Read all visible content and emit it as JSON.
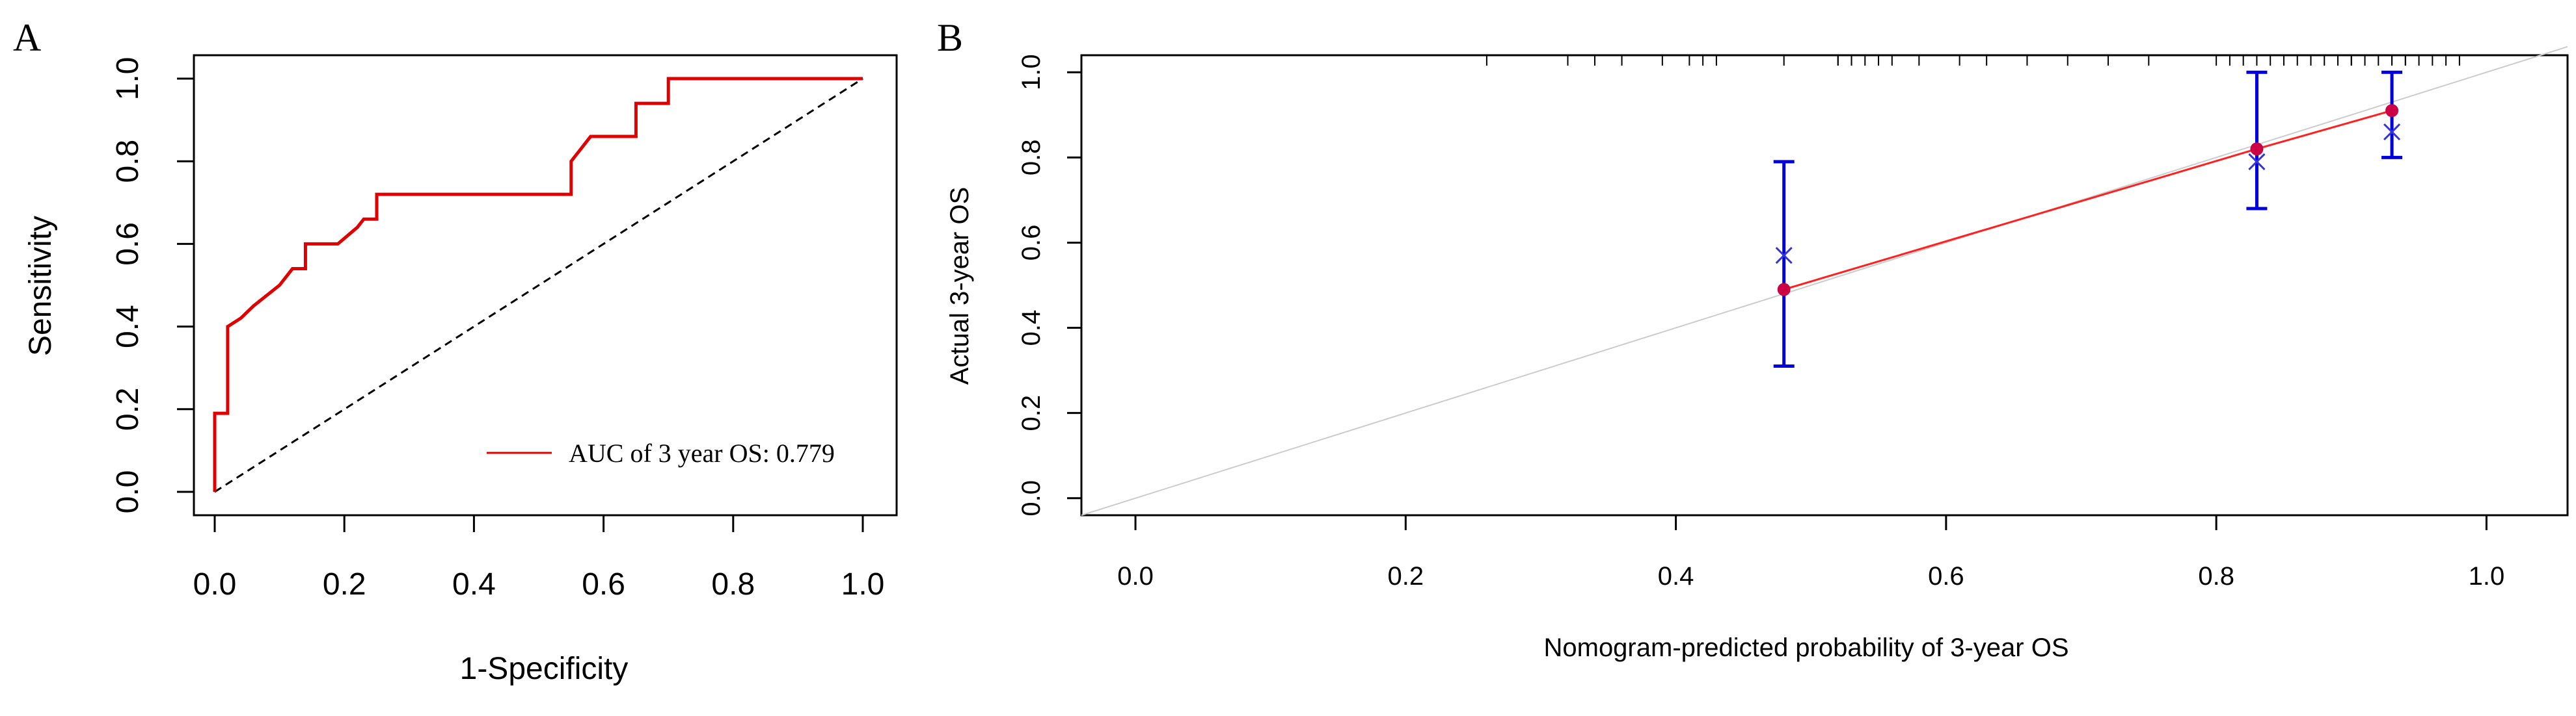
{
  "figure": {
    "panel_a_label": "A",
    "panel_b_label": "B"
  },
  "chart_data": [
    {
      "type": "line",
      "panel": "A",
      "title": "",
      "xlabel": "1-Specificity",
      "ylabel": "Sensitivity",
      "xlim": [
        0.0,
        1.0
      ],
      "ylim": [
        0.0,
        1.0
      ],
      "xticks": [
        "0.0",
        "0.2",
        "0.4",
        "0.6",
        "0.8",
        "1.0"
      ],
      "yticks": [
        "0.0",
        "0.2",
        "0.4",
        "0.6",
        "0.8",
        "1.0"
      ],
      "grid": false,
      "legend_position": "bottom-right",
      "series": [
        {
          "name": "AUC of 3 year OS: 0.779",
          "color": "#e00000",
          "style": "step",
          "points": [
            [
              0.0,
              0.0
            ],
            [
              0.0,
              0.19
            ],
            [
              0.02,
              0.19
            ],
            [
              0.02,
              0.4
            ],
            [
              0.04,
              0.42
            ],
            [
              0.06,
              0.45
            ],
            [
              0.1,
              0.5
            ],
            [
              0.12,
              0.54
            ],
            [
              0.14,
              0.54
            ],
            [
              0.14,
              0.6
            ],
            [
              0.19,
              0.6
            ],
            [
              0.22,
              0.64
            ],
            [
              0.23,
              0.66
            ],
            [
              0.25,
              0.66
            ],
            [
              0.25,
              0.72
            ],
            [
              0.55,
              0.72
            ],
            [
              0.55,
              0.8
            ],
            [
              0.58,
              0.86
            ],
            [
              0.65,
              0.86
            ],
            [
              0.65,
              0.94
            ],
            [
              0.7,
              0.94
            ],
            [
              0.7,
              1.0
            ],
            [
              1.0,
              1.0
            ]
          ]
        },
        {
          "name": "",
          "color": "#000000",
          "style": "dashed",
          "points": [
            [
              0.0,
              0.0
            ],
            [
              1.0,
              1.0
            ]
          ]
        }
      ]
    },
    {
      "type": "scatter",
      "panel": "B",
      "title": "",
      "xlabel": "Nomogram-predicted probability of 3-year OS",
      "ylabel": "Actual 3-year OS",
      "xlim": [
        -0.04,
        1.06
      ],
      "ylim": [
        -0.04,
        1.04
      ],
      "xticks": [
        "0.0",
        "0.2",
        "0.4",
        "0.6",
        "0.8",
        "1.0"
      ],
      "yticks": [
        "0.0",
        "0.2",
        "0.4",
        "0.6",
        "0.8",
        "1.0"
      ],
      "grid": false,
      "ideal_line": {
        "color": "#cccccc",
        "points": [
          [
            -0.04,
            -0.04
          ],
          [
            1.06,
            1.06
          ]
        ]
      },
      "calibration": {
        "color": "#cc0044",
        "line_color": "#ff2020",
        "x": [
          0.48,
          0.83,
          0.93
        ],
        "y": [
          0.49,
          0.82,
          0.91
        ]
      },
      "error_bars": {
        "color": "#0000dd",
        "x": [
          0.48,
          0.83,
          0.93
        ],
        "lower": [
          0.31,
          0.68,
          0.8
        ],
        "upper": [
          0.79,
          1.0,
          1.0
        ]
      },
      "bias_corrected": {
        "marker": "x",
        "color": "#3333dd",
        "x": [
          0.48,
          0.83,
          0.93
        ],
        "y": [
          0.57,
          0.79,
          0.86
        ]
      },
      "rug_x": [
        0.26,
        0.32,
        0.34,
        0.36,
        0.39,
        0.41,
        0.42,
        0.43,
        0.48,
        0.52,
        0.52,
        0.53,
        0.53,
        0.54,
        0.55,
        0.56,
        0.58,
        0.61,
        0.63,
        0.66,
        0.69,
        0.72,
        0.75,
        0.8,
        0.81,
        0.82,
        0.83,
        0.84,
        0.85,
        0.86,
        0.87,
        0.88,
        0.89,
        0.89,
        0.9,
        0.9,
        0.91,
        0.92,
        0.93,
        0.93,
        0.94,
        0.94,
        0.95,
        0.96,
        0.97,
        0.98
      ]
    }
  ]
}
